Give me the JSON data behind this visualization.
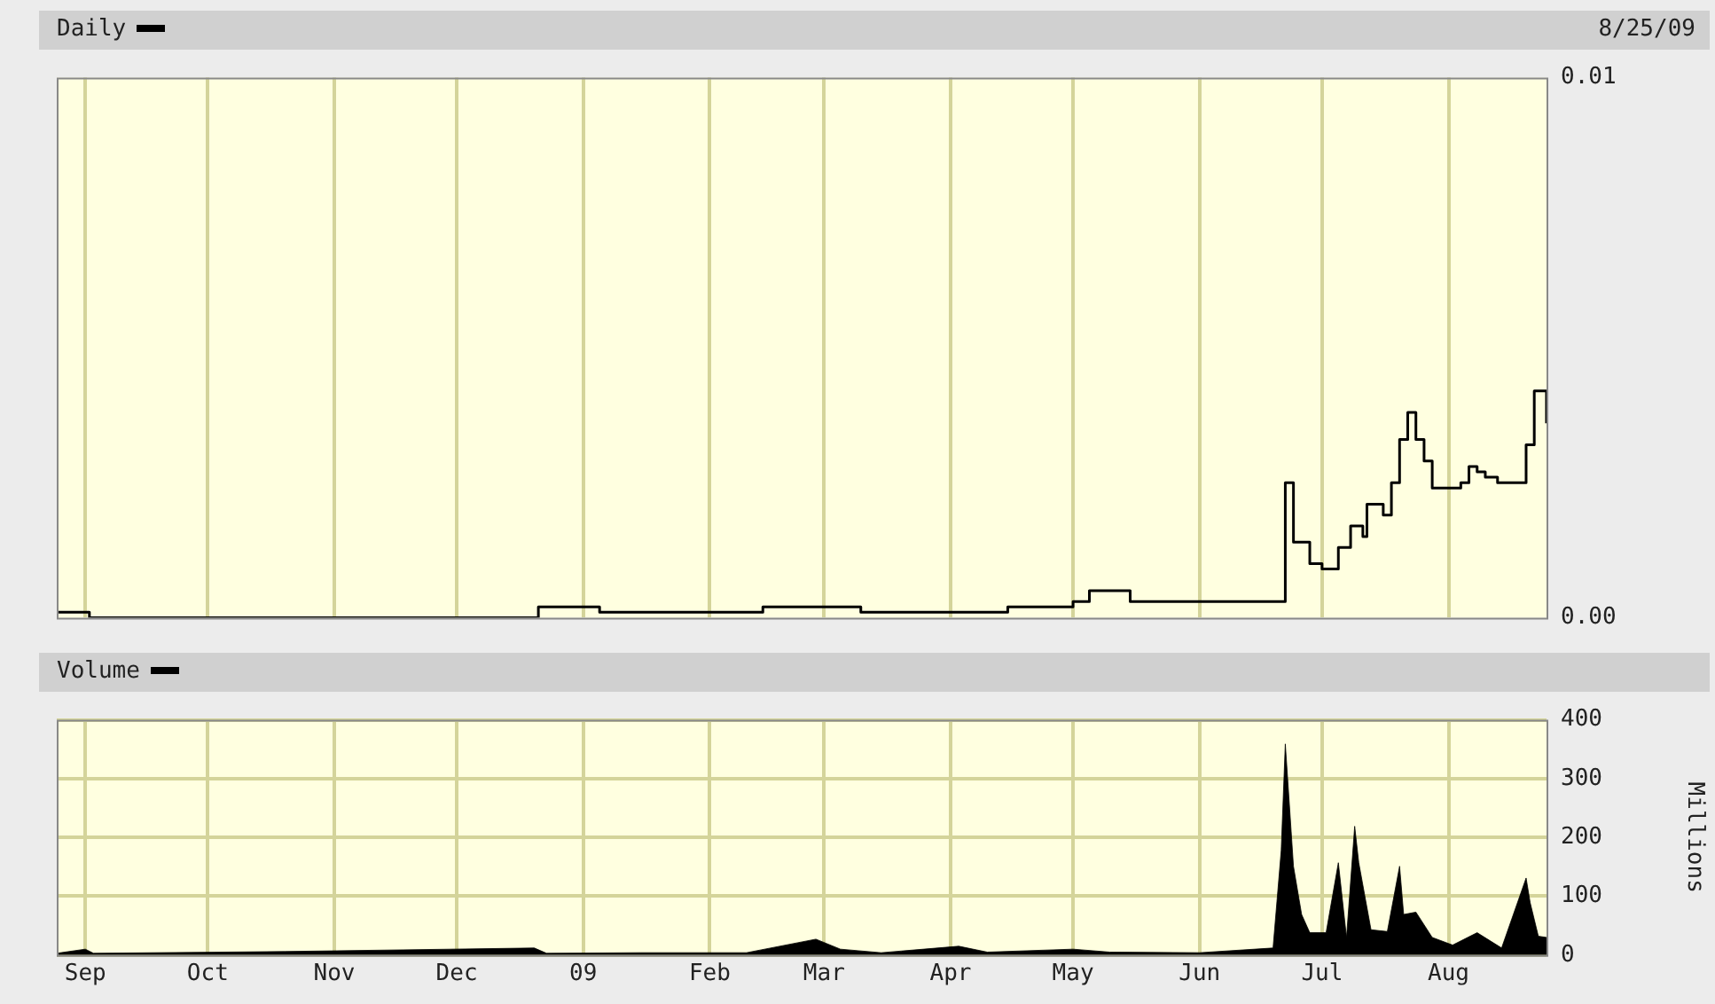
{
  "chart_data": [
    {
      "type": "step",
      "title": "Daily",
      "annotations": [
        "8/25/09"
      ],
      "x": [
        "2008-08-25",
        "2008-08-28",
        "2008-09-02",
        "2008-12-20",
        "2008-12-21",
        "2009-01-01",
        "2009-01-05",
        "2009-02-10",
        "2009-02-14",
        "2009-03-01",
        "2009-03-10",
        "2009-03-20",
        "2009-04-01",
        "2009-04-15",
        "2009-05-01",
        "2009-05-05",
        "2009-05-15",
        "2009-06-01",
        "2009-06-19",
        "2009-06-22",
        "2009-06-24",
        "2009-06-28",
        "2009-07-01",
        "2009-07-05",
        "2009-07-08",
        "2009-07-11",
        "2009-07-12",
        "2009-07-16",
        "2009-07-18",
        "2009-07-20",
        "2009-07-22",
        "2009-07-24",
        "2009-07-26",
        "2009-07-28",
        "2009-08-01",
        "2009-08-04",
        "2009-08-06",
        "2009-08-08",
        "2009-08-10",
        "2009-08-13",
        "2009-08-17",
        "2009-08-20",
        "2009-08-22",
        "2009-08-25"
      ],
      "series": [
        {
          "color": "#000000",
          "values": [
            0.0001,
            0.0001,
            0,
            0,
            0.0002,
            0.0002,
            0.0001,
            0.0001,
            0.0002,
            0.0002,
            0.0001,
            0.0001,
            0.0001,
            0.0002,
            0.0003,
            0.0005,
            0.0003,
            0.0003,
            0.0003,
            0.0025,
            0.0014,
            0.001,
            0.0009,
            0.0013,
            0.0017,
            0.0015,
            0.0021,
            0.0019,
            0.0025,
            0.0033,
            0.0038,
            0.0033,
            0.0029,
            0.0024,
            0.0024,
            0.0025,
            0.0028,
            0.0027,
            0.0026,
            0.0025,
            0.0025,
            0.0032,
            0.0042,
            0.0036
          ]
        }
      ],
      "xlim": [
        "2008-08-25",
        "2009-08-25"
      ],
      "xticks": [
        {
          "value": "2008-09-01",
          "label": null
        },
        {
          "value": "2008-10-01",
          "label": null
        },
        {
          "value": "2008-11-01",
          "label": null
        },
        {
          "value": "2008-12-01",
          "label": null
        },
        {
          "value": "2009-01-01",
          "label": null
        },
        {
          "value": "2009-02-01",
          "label": null
        },
        {
          "value": "2009-03-01",
          "label": null
        },
        {
          "value": "2009-04-01",
          "label": null
        },
        {
          "value": "2009-05-01",
          "label": null
        },
        {
          "value": "2009-06-01",
          "label": null
        },
        {
          "value": "2009-07-01",
          "label": null
        },
        {
          "value": "2009-08-01",
          "label": null
        }
      ],
      "ylim": [
        0,
        0.01
      ],
      "yticks": [
        {
          "value": 0,
          "label": "0.00"
        },
        {
          "value": 0.01,
          "label": "0.01"
        }
      ],
      "grid": "x",
      "tick_labels": "y"
    },
    {
      "type": "area",
      "title": "Volume",
      "ylabel": "Millions",
      "x": [
        "2008-08-25",
        "2008-09-01",
        "2008-09-03",
        "2008-10-20",
        "2008-12-20",
        "2008-12-23",
        "2009-01-15",
        "2009-02-10",
        "2009-02-27",
        "2009-03-05",
        "2009-03-15",
        "2009-04-03",
        "2009-04-10",
        "2009-05-01",
        "2009-05-10",
        "2009-06-01",
        "2009-06-19",
        "2009-06-21",
        "2009-06-22",
        "2009-06-23",
        "2009-06-24",
        "2009-06-26",
        "2009-06-28",
        "2009-07-02",
        "2009-07-05",
        "2009-07-07",
        "2009-07-09",
        "2009-07-10",
        "2009-07-13",
        "2009-07-17",
        "2009-07-20",
        "2009-07-21",
        "2009-07-24",
        "2009-07-28",
        "2009-08-02",
        "2009-08-08",
        "2009-08-14",
        "2009-08-20",
        "2009-08-21",
        "2009-08-23",
        "2009-08-25"
      ],
      "series": [
        {
          "color": "#000000",
          "values": [
            3,
            10,
            3,
            6,
            12,
            3,
            4,
            4,
            27,
            10,
            4,
            15,
            5,
            10,
            5,
            4,
            12,
            178,
            359,
            256,
            151,
            69,
            38,
            38,
            157,
            30,
            219,
            157,
            43,
            40,
            151,
            69,
            73,
            30,
            17,
            38,
            12,
            131,
            89,
            32,
            30
          ]
        }
      ],
      "xlim": [
        "2008-08-25",
        "2009-08-25"
      ],
      "xticks": [
        {
          "value": "2008-09-01",
          "label": "Sep"
        },
        {
          "value": "2008-10-01",
          "label": "Oct"
        },
        {
          "value": "2008-11-01",
          "label": "Nov"
        },
        {
          "value": "2008-12-01",
          "label": "Dec"
        },
        {
          "value": "2009-01-01",
          "label": "09"
        },
        {
          "value": "2009-02-01",
          "label": "Feb"
        },
        {
          "value": "2009-03-01",
          "label": "Mar"
        },
        {
          "value": "2009-04-01",
          "label": "Apr"
        },
        {
          "value": "2009-05-01",
          "label": "May"
        },
        {
          "value": "2009-06-01",
          "label": "Jun"
        },
        {
          "value": "2009-07-01",
          "label": "Jul"
        },
        {
          "value": "2009-08-01",
          "label": "Aug"
        }
      ],
      "ylim": [
        0,
        400
      ],
      "yticks": [
        0,
        100,
        200,
        300,
        400
      ],
      "grid": true
    }
  ]
}
